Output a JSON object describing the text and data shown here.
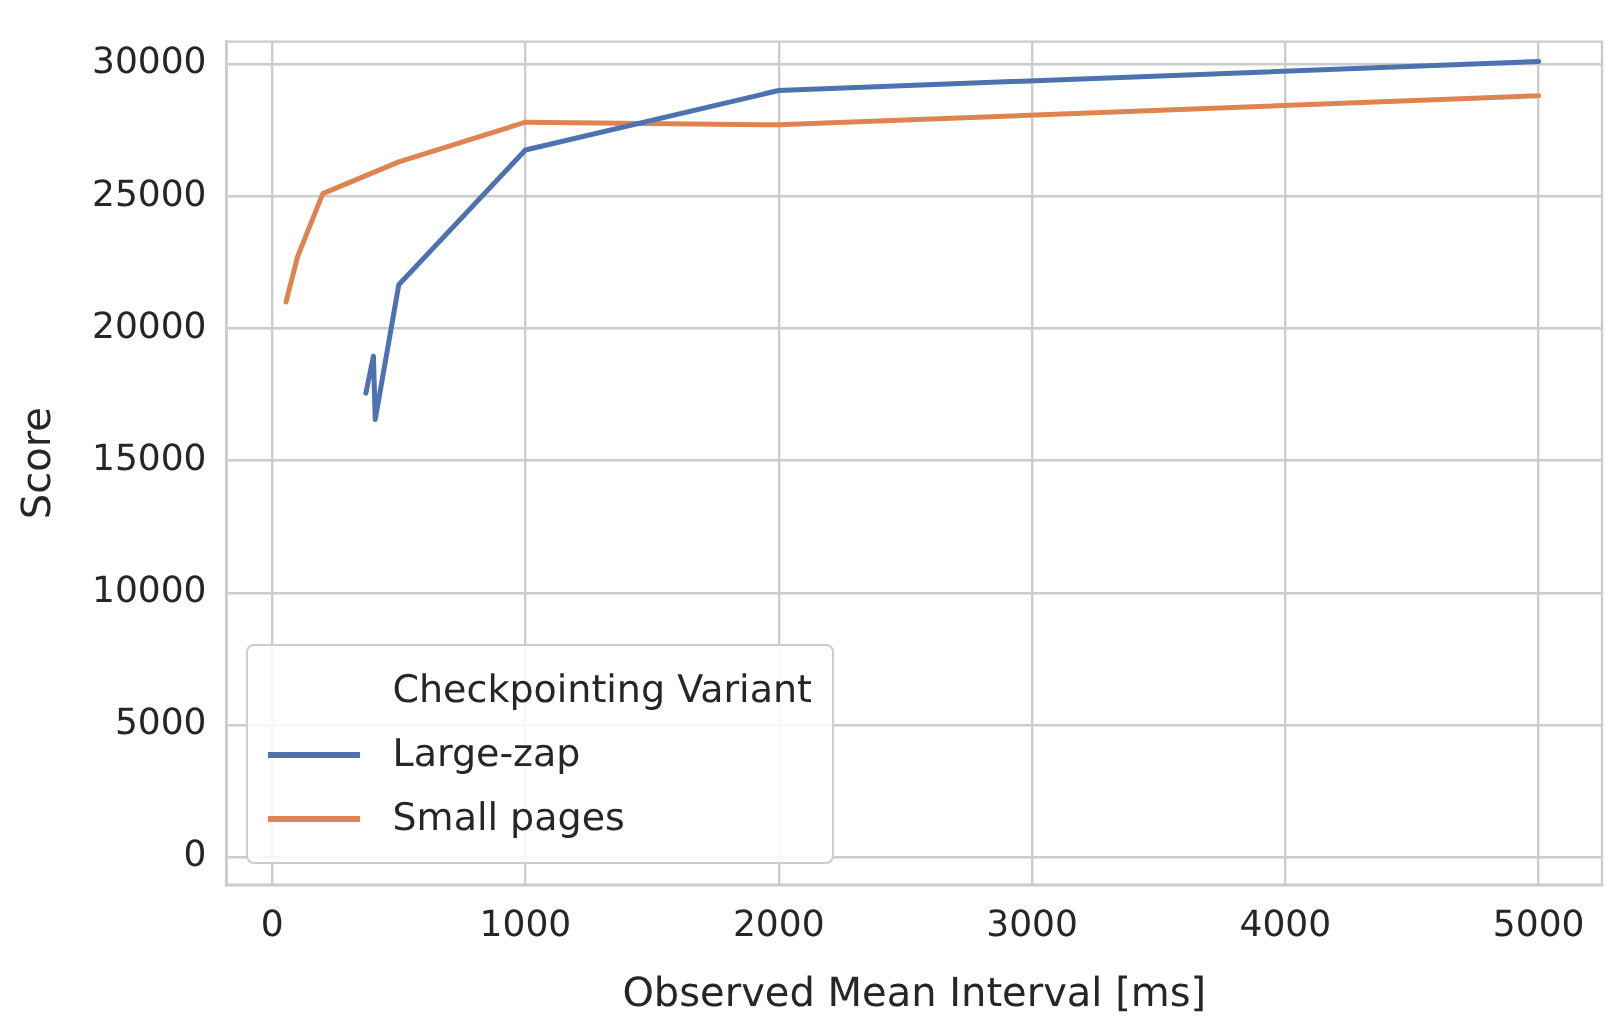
{
  "chart_data": {
    "type": "line",
    "xlabel": "Observed Mean Interval [ms]",
    "ylabel": "Score",
    "legend_title": "Checkpointing Variant",
    "legend": "bottom left",
    "grid": true,
    "marker": "none",
    "line_style": "solid",
    "xlim": [
      -180,
      5250
    ],
    "xticks": [
      0,
      1000,
      2000,
      3000,
      4000,
      5000
    ],
    "ylim": [
      -1050,
      30850
    ],
    "yticks": [
      0,
      5000,
      10000,
      15000,
      20000,
      25000,
      30000
    ],
    "series": [
      {
        "name": "Large-zap",
        "color": "#4c72b0",
        "x": [
          370,
          400,
          407,
          500,
          1000,
          2000,
          5000
        ],
        "values": [
          17550,
          18950,
          16550,
          21650,
          26750,
          29000,
          30100
        ]
      },
      {
        "name": "Small pages",
        "color": "#dd8452",
        "x": [
          55,
          100,
          200,
          500,
          1000,
          2000,
          5000
        ],
        "values": [
          21000,
          22700,
          25100,
          26300,
          27800,
          27700,
          28800
        ]
      }
    ]
  }
}
